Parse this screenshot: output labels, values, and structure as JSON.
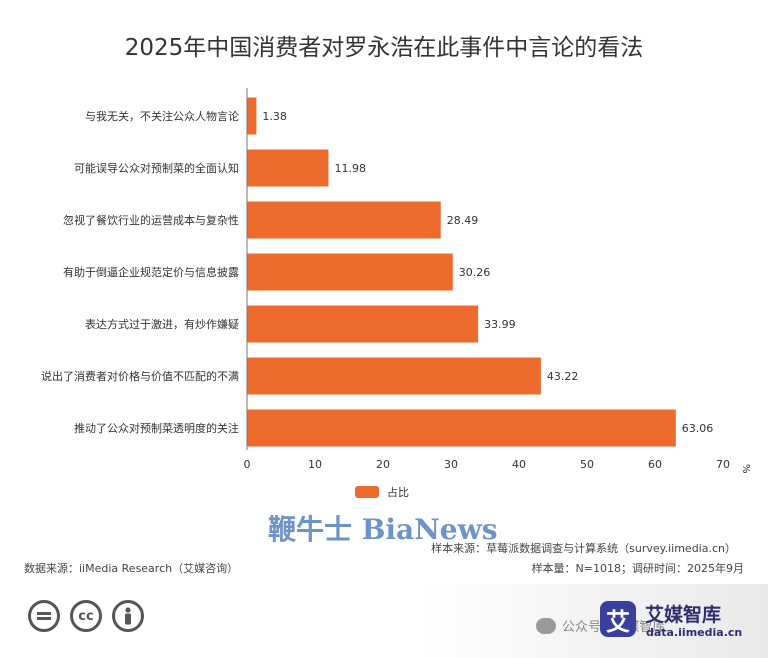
{
  "chart_data": {
    "type": "bar",
    "orientation": "horizontal",
    "title": "2025年中国消费者对罗永浩在此事件中言论的看法",
    "categories": [
      "与我无关，不关注公众人物言论",
      "可能误导公众对预制菜的全面认知",
      "忽视了餐饮行业的运营成本与复杂性",
      "有助于倒逼企业规范定价与信息披露",
      "表达方式过于激进，有炒作嫌疑",
      "说出了消费者对价格与价值不匹配的不满",
      "推动了公众对预制菜透明度的关注"
    ],
    "series": [
      {
        "name": "占比",
        "values": [
          1.38,
          11.98,
          28.49,
          30.26,
          33.99,
          43.22,
          63.06
        ]
      }
    ],
    "xlim": [
      0,
      70
    ],
    "xticks": [
      0,
      10,
      20,
      30,
      40,
      50,
      60,
      70
    ],
    "unit": "%",
    "legend_position": "bottom",
    "grid": false,
    "bar_color": "#ED6C2D"
  },
  "watermark_text": "鞭牛士 BiaNews",
  "sources": {
    "data_source": "数据来源：iiMedia Research（艾媒咨询）",
    "sample_source": "样本来源：草莓派数据调查与计算系统（survey.iimedia.cn）",
    "sample_info": "样本量：N=1018；调研时间：2025年9月"
  },
  "footer": {
    "cc_icons": [
      "equals-icon",
      "cc-icon",
      "person-icon"
    ],
    "wechat_text": "公众号 · 艾媒智库",
    "brand_logo_char": "艾",
    "brand_name": "艾媒智库",
    "brand_url": "data.iimedia.cn"
  }
}
